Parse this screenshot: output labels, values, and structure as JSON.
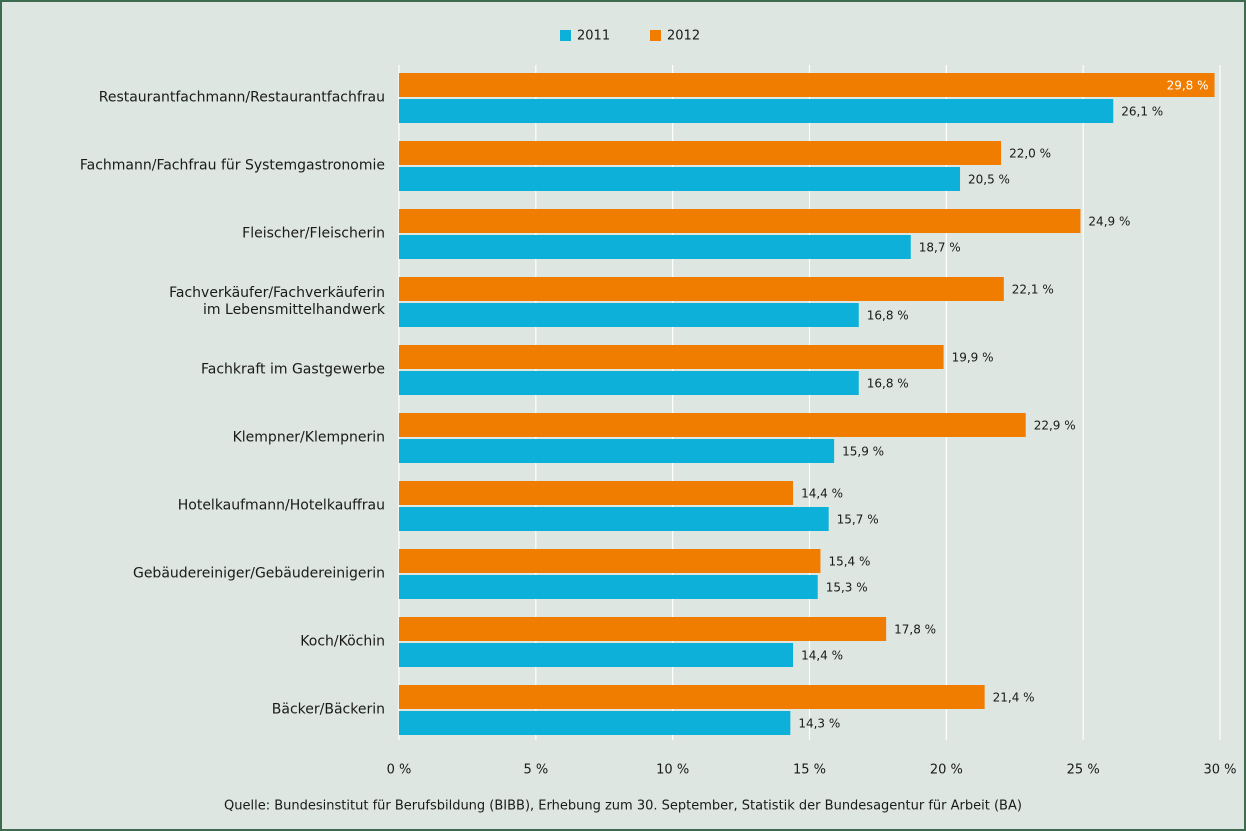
{
  "chart_data": {
    "type": "hbar",
    "categories": [
      "Restaurantfachmann/Restaurantfachfrau",
      "Fachmann/Fachfrau für Systemgastronomie",
      "Fleischer/Fleischerin",
      "Fachverkäufer/Fachverkäuferin\nim Lebensmittelhandwerk",
      "Fachkraft im Gastgewerbe",
      "Klempner/Klempnerin",
      "Hotelkaufmann/Hotelkauffrau",
      "Gebäudereiniger/Gebäudereinigerin",
      "Koch/Köchin",
      "Bäcker/Bäckerin"
    ],
    "series": [
      {
        "name": "2011",
        "color": "#0cb0d8",
        "values": [
          26.1,
          20.5,
          18.7,
          16.8,
          16.8,
          15.9,
          15.7,
          15.3,
          14.4,
          14.3
        ],
        "value_labels": [
          "26,1 %",
          "20,5 %",
          "18,7 %",
          "16,8 %",
          "16,8 %",
          "15,9 %",
          "15,7 %",
          "15,3 %",
          "14,4 %",
          "14,3 %"
        ]
      },
      {
        "name": "2012",
        "color": "#f07d00",
        "values": [
          29.8,
          22.0,
          24.9,
          22.1,
          19.9,
          22.9,
          14.4,
          15.4,
          17.8,
          21.4
        ],
        "value_labels": [
          "29,8 %",
          "22,0 %",
          "24,9 %",
          "22,1 %",
          "19,9 %",
          "22,9 %",
          "14,4 %",
          "15,4 %",
          "17,8 %",
          "21,4 %"
        ]
      }
    ],
    "xlim": [
      0,
      30
    ],
    "xticks": [
      {
        "value": 0,
        "label": "0 %"
      },
      {
        "value": 5,
        "label": "5 %"
      },
      {
        "value": 10,
        "label": "10 %"
      },
      {
        "value": 15,
        "label": "15 %"
      },
      {
        "value": 20,
        "label": "20 %"
      },
      {
        "value": 25,
        "label": "25 %"
      },
      {
        "value": 30,
        "label": "30 %"
      }
    ],
    "grid": true,
    "legend": "top",
    "source": "Quelle: Bundesinstitut für Berufsbildung (BIBB), Erhebung zum 30. September, Statistik der Bundesagentur für Arbeit (BA)"
  }
}
